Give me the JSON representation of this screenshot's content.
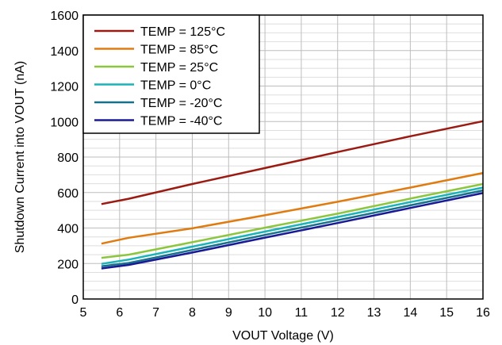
{
  "chart_data": {
    "type": "line",
    "title": "",
    "xlabel": "VOUT Voltage (V)",
    "ylabel": "Shutdown Current into VOUT (nA)",
    "xlim": [
      5,
      16
    ],
    "ylim": [
      0,
      1600
    ],
    "x_ticks": [
      5,
      6,
      7,
      8,
      9,
      10,
      11,
      12,
      13,
      14,
      15,
      16
    ],
    "y_ticks": [
      0,
      200,
      400,
      600,
      800,
      1000,
      1200,
      1400,
      1600
    ],
    "x_tick_labels": [
      "5",
      "6",
      "7",
      "8",
      "9",
      "10",
      "11",
      "12",
      "13",
      "14",
      "15",
      "16"
    ],
    "y_tick_labels": [
      "0",
      "200",
      "400",
      "600",
      "800",
      "1000",
      "1200",
      "1400",
      "1600"
    ],
    "grid": {
      "x_major": true,
      "y_major": true,
      "y_minor_step": 50
    },
    "legend_position": "top-left",
    "series": [
      {
        "name": "TEMP = 125°C",
        "color": "#9b1b12",
        "x": [
          5.5,
          6.25,
          8,
          10,
          12,
          14,
          16
        ],
        "y": [
          535,
          565,
          648,
          738,
          828,
          917,
          1002
        ]
      },
      {
        "name": "TEMP = 85°C",
        "color": "#e07b10",
        "x": [
          5.5,
          6.25,
          8,
          10,
          12,
          14,
          16
        ],
        "y": [
          312,
          345,
          398,
          472,
          548,
          628,
          710
        ]
      },
      {
        "name": "TEMP = 25°C",
        "color": "#8cc63e",
        "x": [
          5.5,
          6.25,
          8,
          10,
          12,
          14,
          16
        ],
        "y": [
          232,
          250,
          320,
          402,
          481,
          566,
          648
        ]
      },
      {
        "name": "TEMP = 0°C",
        "color": "#1ab3b8",
        "x": [
          5.5,
          6.25,
          8,
          10,
          12,
          14,
          16
        ],
        "y": [
          198,
          222,
          295,
          380,
          462,
          546,
          628
        ]
      },
      {
        "name": "TEMP = -20°C",
        "color": "#17718a",
        "x": [
          5.5,
          6.25,
          8,
          10,
          12,
          14,
          16
        ],
        "y": [
          184,
          203,
          276,
          361,
          444,
          528,
          612
        ]
      },
      {
        "name": "TEMP = -40°C",
        "color": "#1a1a96",
        "x": [
          5.5,
          6.25,
          8,
          10,
          12,
          14,
          16
        ],
        "y": [
          172,
          192,
          262,
          346,
          428,
          513,
          597
        ]
      }
    ]
  }
}
